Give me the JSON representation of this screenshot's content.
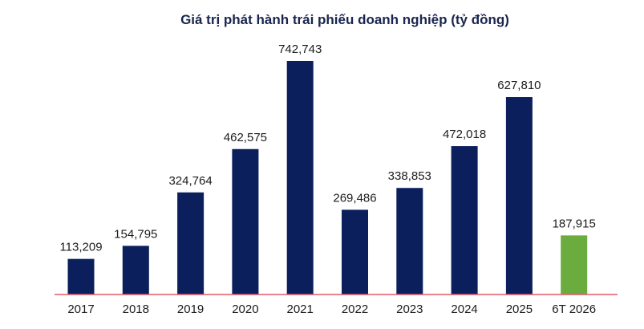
{
  "chart_data": {
    "type": "bar",
    "title": "Giá trị phát hành trái phiếu doanh nghiệp (tỷ đồng)",
    "xlabel": "",
    "ylabel": "",
    "categories": [
      "2017",
      "2018",
      "2019",
      "2020",
      "2021",
      "2022",
      "2023",
      "2024",
      "2025",
      "6T 2026"
    ],
    "values": [
      113209,
      154795,
      324764,
      462575,
      742743,
      269486,
      338853,
      472018,
      627810,
      187915
    ],
    "value_labels": [
      "113,209",
      "154,795",
      "324,764",
      "462,575",
      "742,743",
      "269,486",
      "338,853",
      "472,018",
      "627,810",
      "187,915"
    ],
    "ylim": [
      0,
      742743
    ],
    "grid": false,
    "legend": "none",
    "colors": {
      "bar": "#0b1f5c",
      "highlight": "#6aac3e",
      "baseline": "#e05a6a",
      "title": "#1a2550"
    },
    "highlight_index": 9
  }
}
